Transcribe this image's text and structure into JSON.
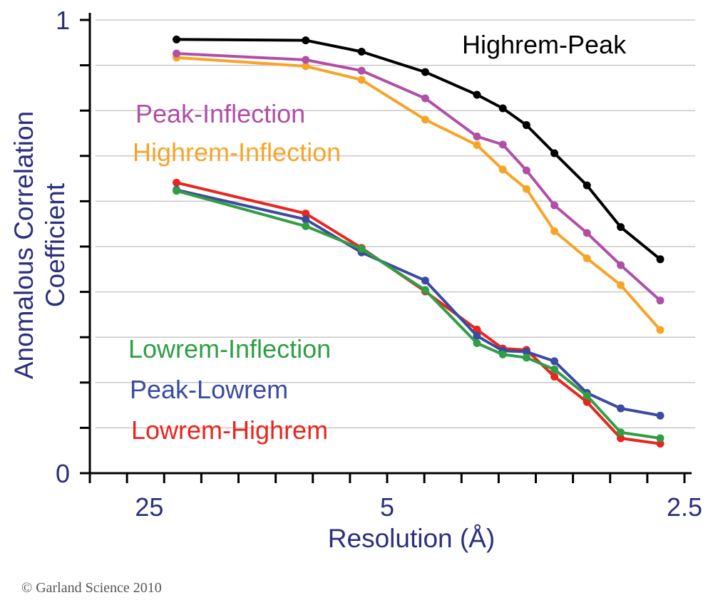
{
  "chart_data": {
    "type": "line",
    "xlabel": "Resolution (Å)",
    "ylabel": [
      "Anomalous Correlation",
      "Coefficient"
    ],
    "x_ticks": [
      {
        "value": "1/25",
        "label": "25"
      },
      {
        "value": "1/5",
        "label": "5"
      },
      {
        "value": "1/2.5",
        "label": "2.5"
      }
    ],
    "y_ticks": [
      {
        "value": 0,
        "label": "0"
      },
      {
        "value": 1,
        "label": "1"
      }
    ],
    "xlim": [
      0,
      0.4
    ],
    "ylim": [
      0,
      1
    ],
    "grid": "horizontal",
    "series": [
      {
        "name": "Highrem-Peak",
        "color": "#000000",
        "points": [
          [
            0.0583,
            0.957
          ],
          [
            0.1452,
            0.955
          ],
          [
            0.1828,
            0.93
          ],
          [
            0.2256,
            0.885
          ],
          [
            0.2604,
            0.835
          ],
          [
            0.2778,
            0.805
          ],
          [
            0.2937,
            0.768
          ],
          [
            0.3125,
            0.706
          ],
          [
            0.3344,
            0.635
          ],
          [
            0.3571,
            0.543
          ],
          [
            0.3837,
            0.472
          ]
        ]
      },
      {
        "name": "Peak-Inflection",
        "color": "#B04FA8",
        "points": [
          [
            0.0583,
            0.926
          ],
          [
            0.1452,
            0.912
          ],
          [
            0.1828,
            0.888
          ],
          [
            0.2256,
            0.827
          ],
          [
            0.2604,
            0.743
          ],
          [
            0.2778,
            0.725
          ],
          [
            0.2937,
            0.668
          ],
          [
            0.3125,
            0.591
          ],
          [
            0.3344,
            0.53
          ],
          [
            0.3571,
            0.459
          ],
          [
            0.3837,
            0.381
          ]
        ]
      },
      {
        "name": "Highrem-Inflection",
        "color": "#F7A427",
        "points": [
          [
            0.0583,
            0.917
          ],
          [
            0.1452,
            0.898
          ],
          [
            0.1828,
            0.868
          ],
          [
            0.2256,
            0.78
          ],
          [
            0.2604,
            0.724
          ],
          [
            0.2778,
            0.67
          ],
          [
            0.2937,
            0.627
          ],
          [
            0.3125,
            0.534
          ],
          [
            0.3344,
            0.474
          ],
          [
            0.3571,
            0.415
          ],
          [
            0.3837,
            0.316
          ]
        ]
      },
      {
        "name": "Lowrem-Inflection",
        "color": "#2F9E44",
        "points": [
          [
            0.0583,
            0.623
          ],
          [
            0.1452,
            0.545
          ],
          [
            0.1828,
            0.495
          ],
          [
            0.2256,
            0.404
          ],
          [
            0.2604,
            0.287
          ],
          [
            0.2778,
            0.262
          ],
          [
            0.2937,
            0.255
          ],
          [
            0.3125,
            0.229
          ],
          [
            0.3344,
            0.171
          ],
          [
            0.3571,
            0.09
          ],
          [
            0.3837,
            0.077
          ]
        ]
      },
      {
        "name": "Peak-Lowrem",
        "color": "#3B4BA0",
        "points": [
          [
            0.0583,
            0.625
          ],
          [
            0.1452,
            0.56
          ],
          [
            0.1828,
            0.487
          ],
          [
            0.2256,
            0.425
          ],
          [
            0.2604,
            0.303
          ],
          [
            0.2778,
            0.27
          ],
          [
            0.2937,
            0.268
          ],
          [
            0.3125,
            0.247
          ],
          [
            0.3344,
            0.177
          ],
          [
            0.3571,
            0.143
          ],
          [
            0.3837,
            0.127
          ]
        ]
      },
      {
        "name": "Lowrem-Highrem",
        "color": "#E8261F",
        "points": [
          [
            0.0583,
            0.641
          ],
          [
            0.1452,
            0.573
          ],
          [
            0.1828,
            0.497
          ],
          [
            0.2256,
            0.401
          ],
          [
            0.2604,
            0.317
          ],
          [
            0.2778,
            0.275
          ],
          [
            0.2937,
            0.272
          ],
          [
            0.3125,
            0.213
          ],
          [
            0.3344,
            0.157
          ],
          [
            0.3571,
            0.077
          ],
          [
            0.3837,
            0.065
          ]
        ]
      }
    ],
    "legend": [
      {
        "name": "Highrem-Peak",
        "color": "#000000",
        "placement": "top-right"
      },
      {
        "name": "Peak-Inflection",
        "color": "#B04FA8",
        "placement": "upper-left"
      },
      {
        "name": "Highrem-Inflection",
        "color": "#F7A427",
        "placement": "upper-left"
      },
      {
        "name": "Lowrem-Inflection",
        "color": "#2F9E44",
        "placement": "lower-left"
      },
      {
        "name": "Peak-Lowrem",
        "color": "#3B4BA0",
        "placement": "lower-left"
      },
      {
        "name": "Lowrem-Highrem",
        "color": "#E8261F",
        "placement": "lower-left"
      }
    ]
  },
  "credit": "© Garland Science 2010"
}
